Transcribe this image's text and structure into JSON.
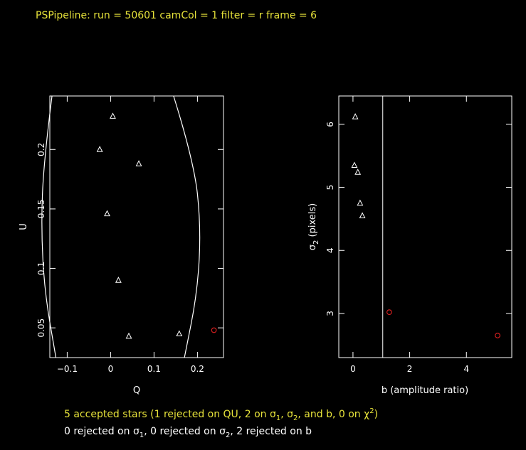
{
  "title": "PSPipeline: run = 50601 camCol = 1 filter = r frame = 6",
  "footer": {
    "line1": {
      "part_a": "5 accepted stars (1 rejected on QU, 2 on ",
      "sym_sigma": "σ",
      "sub_1": "1",
      "sep1": ", ",
      "sub_2": "2",
      "part_b": ", and b, 0 on ",
      "sym_chi": "χ",
      "sup_2": "2",
      "part_c": ")"
    },
    "line2": {
      "part_a": "0 rejected on ",
      "sym_sigma": "σ",
      "sub_1": "1",
      "part_b": ", 0 rejected on ",
      "sub_2": "2",
      "part_c": ",  2 rejected on b"
    }
  },
  "colors": {
    "title": "#e6e23a",
    "axes": "#ffffff",
    "rejected": "#e02020",
    "background": "#000000"
  },
  "chart_data": [
    {
      "type": "scatter",
      "xlabel": "Q",
      "ylabel": "U",
      "xlim": [
        -0.14,
        0.26
      ],
      "ylim": [
        0.025,
        0.245
      ],
      "xticks": [
        -0.1,
        0,
        0.1,
        0.2
      ],
      "xtick_labels": [
        "−0.1",
        "0",
        "0.1",
        "0.2"
      ],
      "yticks": [
        0.05,
        0.1,
        0.15,
        0.2
      ],
      "ytick_labels": [
        "0.05",
        "0.1",
        "0.15",
        "0.2"
      ],
      "grid": false,
      "series": [
        {
          "marker": "triangle",
          "color": "#ffffff",
          "points": [
            {
              "x": 0.005,
              "y": 0.228
            },
            {
              "x": -0.025,
              "y": 0.2
            },
            {
              "x": 0.065,
              "y": 0.188
            },
            {
              "x": -0.008,
              "y": 0.146
            },
            {
              "x": 0.018,
              "y": 0.09
            },
            {
              "x": 0.042,
              "y": 0.043
            },
            {
              "x": 0.158,
              "y": 0.045
            }
          ]
        },
        {
          "marker": "circle",
          "color": "#e02020",
          "points": [
            {
              "x": 0.238,
              "y": 0.048
            }
          ]
        }
      ],
      "curves": [
        {
          "name": "acceptance boundary",
          "color": "#ffffff",
          "points": [
            [
              -0.135,
              0.245
            ],
            [
              -0.154,
              0.19
            ],
            [
              -0.16,
              0.135
            ],
            [
              -0.152,
              0.08
            ],
            [
              -0.126,
              0.025
            ]
          ]
        },
        {
          "name": "acceptance boundary",
          "color": "#ffffff",
          "points": [
            [
              0.145,
              0.245
            ],
            [
              0.192,
              0.19
            ],
            [
              0.208,
              0.135
            ],
            [
              0.2,
              0.08
            ],
            [
              0.17,
              0.025
            ]
          ]
        }
      ]
    },
    {
      "type": "scatter",
      "xlabel": "b (amplitude ratio)",
      "ylabel": "σ2 (pixels)",
      "ylabel_sym": "σ",
      "ylabel_sub": "2",
      "ylabel_rest": " (pixels)",
      "xlim": [
        -0.5,
        5.6
      ],
      "ylim": [
        2.3,
        6.45
      ],
      "xticks": [
        0,
        2,
        4
      ],
      "xtick_labels": [
        "0",
        "2",
        "4"
      ],
      "yticks": [
        3,
        4,
        5,
        6
      ],
      "ytick_labels": [
        "3",
        "4",
        "5",
        "6"
      ],
      "grid": false,
      "vline": 1.05,
      "series": [
        {
          "marker": "triangle",
          "color": "#ffffff",
          "points": [
            {
              "x": 0.08,
              "y": 6.12
            },
            {
              "x": 0.05,
              "y": 5.35
            },
            {
              "x": 0.17,
              "y": 5.24
            },
            {
              "x": 0.25,
              "y": 4.75
            },
            {
              "x": 0.33,
              "y": 4.55
            }
          ]
        },
        {
          "marker": "circle",
          "color": "#e02020",
          "points": [
            {
              "x": 1.28,
              "y": 3.02
            },
            {
              "x": 5.1,
              "y": 2.65
            }
          ]
        }
      ]
    }
  ]
}
